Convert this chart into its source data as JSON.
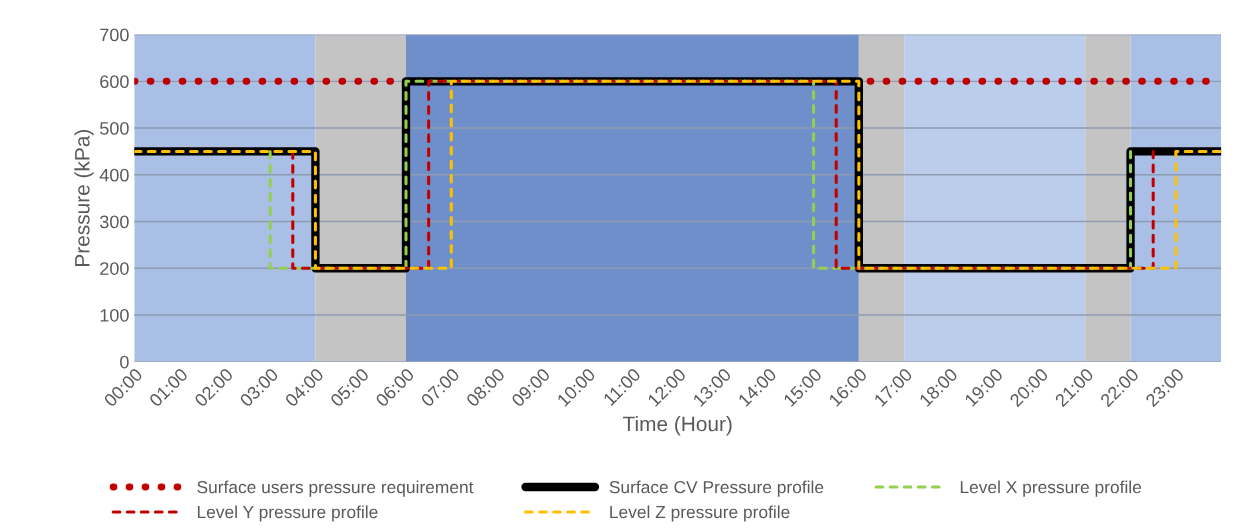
{
  "chart_data": {
    "type": "line",
    "xlabel": "Time (Hour)",
    "ylabel": "Pressure (kPa)",
    "xlim": [
      0,
      24
    ],
    "ylim": [
      0,
      700
    ],
    "yticks": [
      0,
      100,
      200,
      300,
      400,
      500,
      600,
      700
    ],
    "xticks": [
      {
        "value": 0,
        "label": "00:00"
      },
      {
        "value": 1,
        "label": "01:00"
      },
      {
        "value": 2,
        "label": "02:00"
      },
      {
        "value": 3,
        "label": "03:00"
      },
      {
        "value": 4,
        "label": "04:00"
      },
      {
        "value": 5,
        "label": "05:00"
      },
      {
        "value": 6,
        "label": "06:00"
      },
      {
        "value": 7,
        "label": "07:00"
      },
      {
        "value": 8,
        "label": "08:00"
      },
      {
        "value": 9,
        "label": "09:00"
      },
      {
        "value": 10,
        "label": "10:00"
      },
      {
        "value": 11,
        "label": "11:00"
      },
      {
        "value": 12,
        "label": "12:00"
      },
      {
        "value": 13,
        "label": "13:00"
      },
      {
        "value": 14,
        "label": "14:00"
      },
      {
        "value": 15,
        "label": "15:00"
      },
      {
        "value": 16,
        "label": "16:00"
      },
      {
        "value": 17,
        "label": "17:00"
      },
      {
        "value": 18,
        "label": "18:00"
      },
      {
        "value": 19,
        "label": "19:00"
      },
      {
        "value": 20,
        "label": "20:00"
      },
      {
        "value": 21,
        "label": "21:00"
      },
      {
        "value": 22,
        "label": "22:00"
      },
      {
        "value": 23,
        "label": "23:00"
      }
    ],
    "grid": "y",
    "legend": "bottom",
    "bands": [
      {
        "axis": "x",
        "from": 0,
        "to": 4,
        "color": "#a9bfe6"
      },
      {
        "axis": "x",
        "from": 4,
        "to": 6,
        "color": "#c4c4c4"
      },
      {
        "axis": "x",
        "from": 6,
        "to": 16,
        "color": "#6f8fca"
      },
      {
        "axis": "x",
        "from": 16,
        "to": 17,
        "color": "#c4c4c4"
      },
      {
        "axis": "x",
        "from": 17,
        "to": 21,
        "color": "#bccdec"
      },
      {
        "axis": "x",
        "from": 21,
        "to": 22,
        "color": "#c4c4c4"
      },
      {
        "axis": "x",
        "from": 22,
        "to": 24,
        "color": "#a9bfe6"
      }
    ],
    "series": [
      {
        "name": "Surface users pressure requirement",
        "color": "#c00000",
        "line_style": "dotted",
        "x": [
          0,
          5.75,
          11,
          16.25,
          24
        ],
        "values": [
          600,
          600,
          null,
          600,
          600
        ]
      },
      {
        "name": "Surface CV Pressure profile",
        "color": "#000000",
        "line_style": "solid",
        "x": [
          0,
          4,
          4,
          6,
          6,
          16,
          16,
          22,
          22,
          24
        ],
        "values": [
          450,
          450,
          200,
          200,
          600,
          600,
          200,
          200,
          450,
          450
        ]
      },
      {
        "name": "Level X pressure profile",
        "color": "#92d050",
        "line_style": "dashed",
        "x": [
          3,
          3,
          6,
          6,
          15,
          15,
          22,
          22
        ],
        "values": [
          450,
          200,
          200,
          600,
          600,
          200,
          200,
          450
        ]
      },
      {
        "name": "Level Y pressure profile",
        "color": "#c00000",
        "line_style": "dashed",
        "x": [
          3.5,
          3.5,
          6.5,
          6.5,
          15.5,
          15.5,
          22.5,
          22.5
        ],
        "values": [
          450,
          200,
          200,
          600,
          600,
          200,
          200,
          450
        ]
      },
      {
        "name": "Level Z pressure profile",
        "color": "#ffc000",
        "line_style": "dashed",
        "x": [
          0,
          4,
          4,
          7,
          7,
          16,
          16,
          23,
          23,
          24
        ],
        "values": [
          450,
          450,
          200,
          200,
          600,
          600,
          200,
          200,
          450,
          450
        ]
      }
    ]
  }
}
